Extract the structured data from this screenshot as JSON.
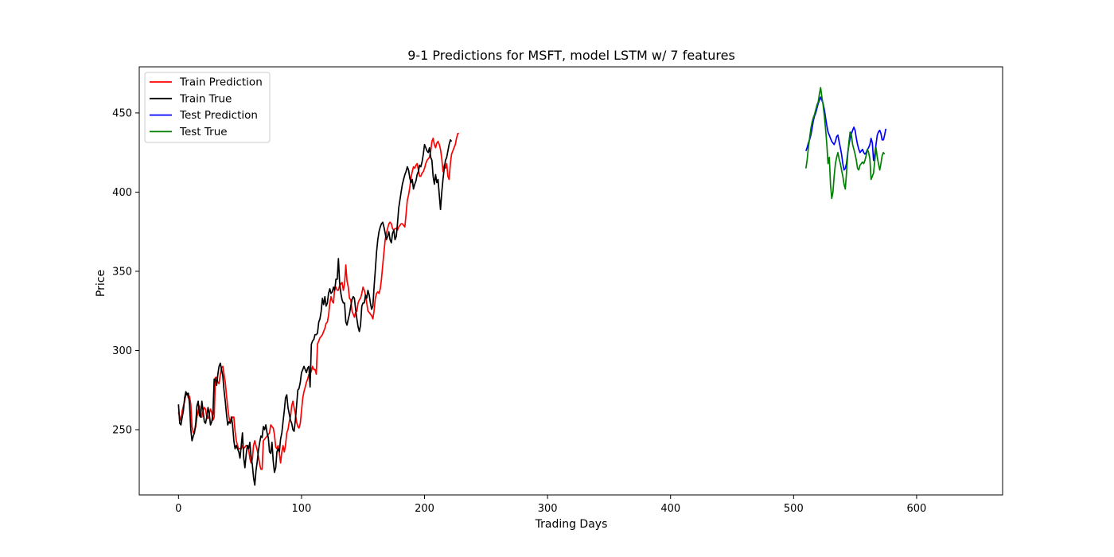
{
  "chart_data": {
    "type": "line",
    "title": "9-1 Predictions for MSFT, model LSTM w/ 7 features",
    "xlabel": "Trading Days",
    "ylabel": "Price",
    "xlim": [
      -31.9,
      669.9
    ],
    "ylim": [
      208.8,
      479.1
    ],
    "xticks": [
      0,
      100,
      200,
      300,
      400,
      500,
      600
    ],
    "yticks": [
      250,
      300,
      350,
      400,
      450
    ],
    "grid": false,
    "legend_position": "top-left",
    "series": [
      {
        "name": "Train Prediction",
        "color": "#ff0000",
        "x_start": 0,
        "values": [
          261,
          258,
          256,
          262,
          265,
          268,
          272,
          273,
          270,
          271,
          266,
          252,
          248,
          249,
          252,
          258,
          262,
          265,
          258,
          258,
          262,
          264,
          263,
          258,
          257,
          260,
          263,
          261,
          256,
          258,
          283,
          283,
          280,
          279,
          285,
          289,
          290,
          285,
          280,
          272,
          264,
          258,
          254,
          256,
          258,
          258,
          249,
          243,
          240,
          238,
          238,
          238,
          240,
          238,
          239,
          240,
          240,
          238,
          232,
          229,
          231,
          240,
          243,
          240,
          237,
          233,
          228,
          225,
          225,
          243,
          244,
          245,
          246,
          247,
          248,
          253,
          252,
          251,
          247,
          239,
          238,
          240,
          235,
          229,
          236,
          240,
          236,
          240,
          248,
          250,
          255,
          258,
          265,
          268,
          264,
          260,
          255,
          252,
          251,
          254,
          262,
          270,
          274,
          277,
          280,
          282,
          285,
          285,
          287,
          290,
          288,
          288,
          285,
          304,
          306,
          308,
          309,
          310,
          312,
          314,
          317,
          318,
          322,
          330,
          334,
          331,
          330,
          340,
          340,
          338,
          338,
          341,
          342,
          343,
          338,
          342,
          354,
          344,
          340,
          333,
          332,
          325,
          323,
          321,
          324,
          325,
          330,
          332,
          333,
          336,
          340,
          338,
          335,
          330,
          325,
          324,
          323,
          322,
          320,
          325,
          333,
          336,
          337,
          336,
          339,
          345,
          354,
          362,
          370,
          374,
          377,
          380,
          381,
          380,
          377,
          376,
          377,
          377,
          376,
          378,
          379,
          380,
          380,
          379,
          378,
          386,
          395,
          398,
          403,
          409,
          413,
          416,
          415,
          417,
          418,
          414,
          410,
          410,
          412,
          413,
          415,
          418,
          420,
          421,
          422,
          426,
          432,
          434,
          430,
          428,
          431,
          432,
          430,
          427,
          421,
          413,
          417,
          415,
          418,
          410,
          408,
          418,
          424,
          426,
          428,
          430,
          434,
          437,
          437
        ]
      },
      {
        "name": "Train True",
        "color": "#000000",
        "x_start": 0,
        "values": [
          266,
          254,
          253,
          258,
          262,
          270,
          274,
          272,
          273,
          266,
          250,
          243,
          246,
          248,
          254,
          265,
          268,
          259,
          258,
          268,
          262,
          255,
          254,
          258,
          264,
          260,
          253,
          255,
          260,
          282,
          282,
          278,
          285,
          290,
          292,
          288,
          284,
          275,
          268,
          260,
          253,
          255,
          254,
          258,
          253,
          243,
          238,
          240,
          238,
          236,
          232,
          240,
          248,
          232,
          226,
          234,
          240,
          238,
          242,
          233,
          228,
          220,
          215,
          224,
          230,
          237,
          242,
          246,
          245,
          252,
          250,
          253,
          248,
          245,
          236,
          235,
          242,
          230,
          223,
          226,
          236,
          238,
          236,
          244,
          248,
          255,
          262,
          270,
          272,
          264,
          260,
          256,
          254,
          250,
          249,
          256,
          265,
          275,
          276,
          280,
          286,
          288,
          290,
          288,
          286,
          289,
          290,
          277,
          304,
          306,
          307,
          310,
          310,
          311,
          318,
          320,
          325,
          333,
          329,
          334,
          328,
          330,
          336,
          339,
          336,
          337,
          340,
          338,
          345,
          345,
          358,
          343,
          336,
          332,
          330,
          330,
          318,
          316,
          320,
          323,
          328,
          332,
          334,
          333,
          326,
          320,
          315,
          312,
          316,
          328,
          330,
          330,
          335,
          333,
          338,
          335,
          330,
          326,
          328,
          340,
          351,
          362,
          370,
          375,
          378,
          380,
          381,
          378,
          374,
          370,
          372,
          375,
          370,
          368,
          374,
          376,
          370,
          372,
          380,
          390,
          395,
          400,
          405,
          408,
          411,
          413,
          416,
          414,
          409,
          406,
          408,
          402,
          405,
          407,
          411,
          413,
          417,
          416,
          419,
          424,
          430,
          428,
          426,
          425,
          428,
          422,
          420,
          410,
          405,
          411,
          406,
          408,
          398,
          389,
          400,
          408,
          415,
          420,
          422,
          426,
          430,
          433,
          432
        ]
      },
      {
        "name": "Test Prediction",
        "color": "#0000ff",
        "x_start": 510,
        "values": [
          426,
          428,
          431,
          433,
          436,
          440,
          445,
          448,
          450,
          453,
          456,
          458,
          460,
          458,
          456,
          452,
          447,
          442,
          438,
          436,
          434,
          432,
          431,
          430,
          432,
          435,
          436,
          432,
          428,
          424,
          418,
          414,
          415,
          418,
          425,
          430,
          434,
          437,
          439,
          441,
          439,
          434,
          430,
          427,
          425,
          426,
          427,
          425,
          424,
          425,
          427,
          428,
          430,
          434,
          431,
          420,
          424,
          430,
          436,
          438,
          439,
          437,
          433,
          433,
          436,
          440
        ]
      },
      {
        "name": "Test True",
        "color": "#008000",
        "x_start": 510,
        "values": [
          415,
          420,
          428,
          434,
          440,
          444,
          447,
          449,
          452,
          455,
          457,
          462,
          466,
          460,
          455,
          448,
          440,
          430,
          418,
          422,
          405,
          396,
          400,
          410,
          418,
          422,
          425,
          421,
          418,
          414,
          410,
          405,
          402,
          412,
          424,
          432,
          438,
          436,
          430,
          427,
          424,
          420,
          415,
          414,
          417,
          418,
          419,
          418,
          420,
          423,
          427,
          425,
          421,
          408,
          410,
          412,
          420,
          428,
          422,
          418,
          414,
          418,
          423,
          425,
          424
        ]
      }
    ]
  }
}
